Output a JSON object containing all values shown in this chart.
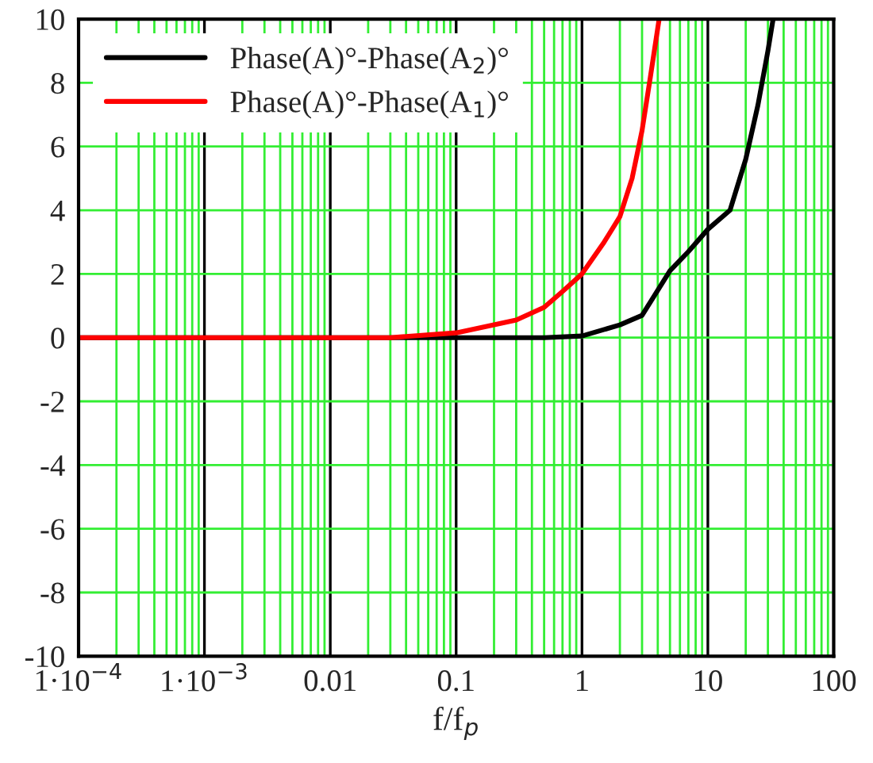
{
  "chart_data": {
    "type": "line",
    "xlabel": "f/f$_{p}$",
    "log": "x",
    "grid": true,
    "legend": "top left",
    "line_style": "solid",
    "marker": "none",
    "xlim": [
      0.0001,
      100
    ],
    "xticks": [
      {
        "value": 0.0001,
        "label": "1·10$^{−4}$"
      },
      {
        "value": 0.001,
        "label": "1·10$^{−3}$"
      },
      0.01,
      0.1,
      1,
      10,
      100
    ],
    "ylim": [
      -10,
      10
    ],
    "yticks": [
      -10,
      -8,
      -6,
      -4,
      -2,
      0,
      2,
      4,
      6,
      8,
      10
    ],
    "series": [
      {
        "name": "Phase(A)°-Phase(A$_{2}$)°",
        "color": "#000000",
        "x": [
          0.0001,
          0.01,
          0.5,
          1,
          2,
          3,
          5,
          7,
          10,
          15,
          20,
          25,
          30,
          33
        ],
        "values": [
          0,
          0,
          0,
          0.05,
          0.4,
          0.7,
          2.1,
          2.7,
          3.4,
          4.0,
          5.6,
          7.3,
          9.0,
          10
        ]
      },
      {
        "name": "Phase(A)°-Phase(A$_{1}$)°",
        "color": "#ff0000",
        "x": [
          0.0001,
          0.01,
          0.03,
          0.1,
          0.3,
          0.5,
          0.7,
          1,
          1.5,
          2,
          2.5,
          3,
          3.5,
          4.1
        ],
        "values": [
          0,
          0,
          0,
          0.15,
          0.55,
          0.95,
          1.45,
          2.0,
          3.0,
          3.8,
          5.0,
          6.5,
          8.2,
          10
        ]
      }
    ]
  }
}
